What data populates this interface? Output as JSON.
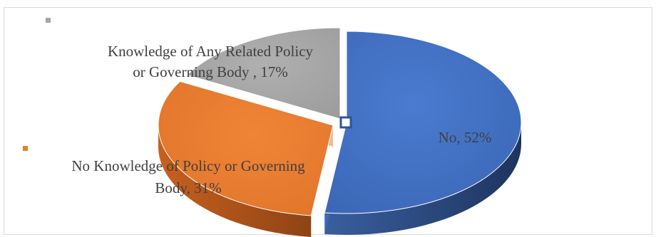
{
  "chart_data": {
    "type": "pie",
    "title": "",
    "style": "3d-exploded",
    "slices": [
      {
        "label": "No",
        "value": 52,
        "display": "No, 52%",
        "color": "#4472C4"
      },
      {
        "label": "No Knowledge of Policy or Governing Body",
        "value": 31,
        "display_lines": [
          "No Knowledge of Policy or Governing",
          "Body, 31%"
        ],
        "color": "#ED7D31"
      },
      {
        "label": "Knowledge of Any Related Policy or Governing Body",
        "value": 17,
        "display_lines": [
          "Knowledge of Any Related Policy",
          "or Governing Body , 17%"
        ],
        "color": "#A5A5A5"
      }
    ]
  }
}
